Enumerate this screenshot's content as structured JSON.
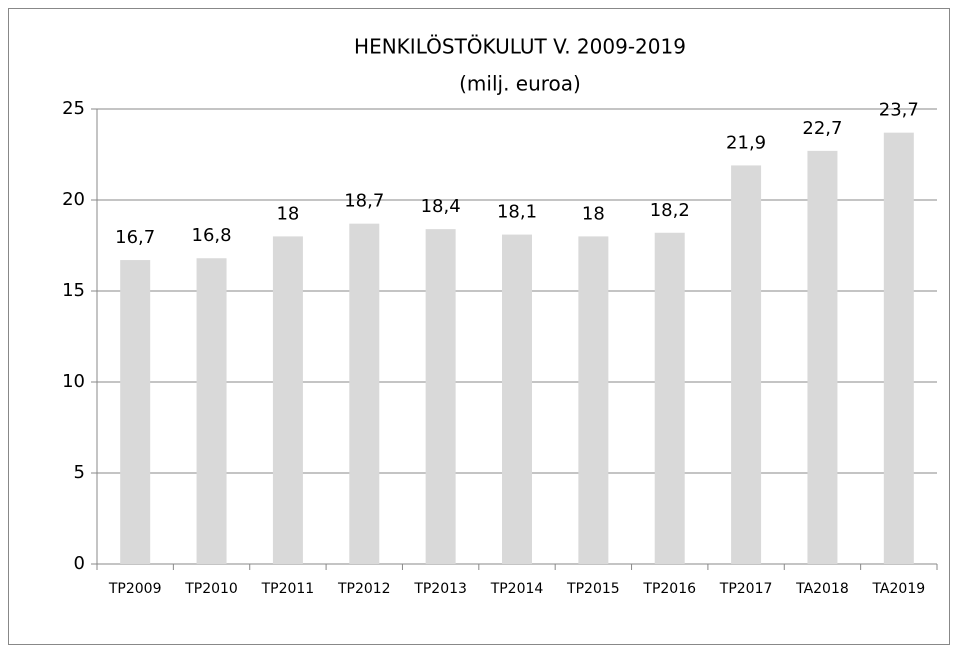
{
  "chart_data": {
    "type": "bar",
    "title": "HENKILÖSTÖKULUT V. 2009-2019",
    "subtitle": "(milj. euroa)",
    "categories": [
      "TP2009",
      "TP2010",
      "TP2011",
      "TP2012",
      "TP2013",
      "TP2014",
      "TP2015",
      "TP2016",
      "TP2017",
      "TA2018",
      "TA2019"
    ],
    "values": [
      16.7,
      16.8,
      18,
      18.7,
      18.4,
      18.1,
      18,
      18.2,
      21.9,
      22.7,
      23.7
    ],
    "value_labels": [
      "16,7",
      "16,8",
      "18",
      "18,7",
      "18,4",
      "18,1",
      "18",
      "18,2",
      "21,9",
      "22,7",
      "23,7"
    ],
    "color": "#d9d9d9",
    "ylim": [
      0,
      25
    ],
    "yticks": [
      0,
      5,
      10,
      15,
      20,
      25
    ],
    "grid": true
  }
}
